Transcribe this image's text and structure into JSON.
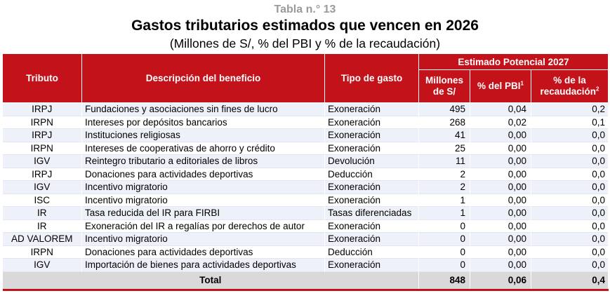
{
  "header": {
    "table_number": "Tabla n.° 13",
    "title": "Gastos tributarios estimados que vencen en 2026",
    "subtitle": "(Millones de S/, % del PBI y % de la recaudación)"
  },
  "columns": {
    "tributo": "Tributo",
    "descripcion": "Descripción del beneficio",
    "tipo": "Tipo de gasto",
    "group": "Estimado Potencial 2027",
    "millones_line1": "Millones",
    "millones_line2": "de S/",
    "pct_pbi": "% del PBI",
    "pct_pbi_note": "1",
    "pct_rec_line1": "% de la",
    "pct_rec_line2": "recaudación",
    "pct_rec_note": "2"
  },
  "rows": [
    {
      "tributo": "IRPJ",
      "descripcion": "Fundaciones y asociaciones sin fines de lucro",
      "tipo": "Exoneración",
      "millones": "495",
      "pbi": "0,04",
      "recaudacion": "0,2"
    },
    {
      "tributo": "IRPN",
      "descripcion": "Intereses por depósitos bancarios",
      "tipo": "Exoneración",
      "millones": "268",
      "pbi": "0,02",
      "recaudacion": "0,1"
    },
    {
      "tributo": "IRPJ",
      "descripcion": "Instituciones religiosas",
      "tipo": "Exoneración",
      "millones": "41",
      "pbi": "0,00",
      "recaudacion": "0,0"
    },
    {
      "tributo": "IRPN",
      "descripcion": "Intereses de cooperativas de ahorro y crédito",
      "tipo": "Exoneración",
      "millones": "25",
      "pbi": "0,00",
      "recaudacion": "0,0"
    },
    {
      "tributo": "IGV",
      "descripcion": "Reintegro tributario a editoriales de libros",
      "tipo": "Devolución",
      "millones": "11",
      "pbi": "0,00",
      "recaudacion": "0,0"
    },
    {
      "tributo": "IRPJ",
      "descripcion": "Donaciones para actividades deportivas",
      "tipo": "Deducción",
      "millones": "2",
      "pbi": "0,00",
      "recaudacion": "0,0"
    },
    {
      "tributo": "IGV",
      "descripcion": "Incentivo migratorio",
      "tipo": "Exoneración",
      "millones": "2",
      "pbi": "0,00",
      "recaudacion": "0,0"
    },
    {
      "tributo": "ISC",
      "descripcion": "Incentivo migratorio",
      "tipo": "Exoneración",
      "millones": "1",
      "pbi": "0,00",
      "recaudacion": "0,0"
    },
    {
      "tributo": "IR",
      "descripcion": "Tasa reducida del IR para FIRBI",
      "tipo": "Tasas diferenciadas",
      "millones": "1",
      "pbi": "0,00",
      "recaudacion": "0,0"
    },
    {
      "tributo": "IR",
      "descripcion": "Exoneración del IR a regalías por derechos de autor",
      "tipo": "Exoneración",
      "millones": "0",
      "pbi": "0,00",
      "recaudacion": "0,0"
    },
    {
      "tributo": "AD VALOREM",
      "descripcion": "Incentivo migratorio",
      "tipo": "Exoneración",
      "millones": "0",
      "pbi": "0,00",
      "recaudacion": "0,0"
    },
    {
      "tributo": "IRPN",
      "descripcion": "Donaciones para actividades deportivas",
      "tipo": "Deducción",
      "millones": "0",
      "pbi": "0,00",
      "recaudacion": "0,0"
    },
    {
      "tributo": "IGV",
      "descripcion": "Importación de bienes para actividades deportivas",
      "tipo": "Exoneración",
      "millones": "0",
      "pbi": "0,00",
      "recaudacion": "0,0"
    }
  ],
  "total": {
    "label": "Total",
    "millones": "848",
    "pbi": "0,06",
    "recaudacion": "0,4"
  }
}
